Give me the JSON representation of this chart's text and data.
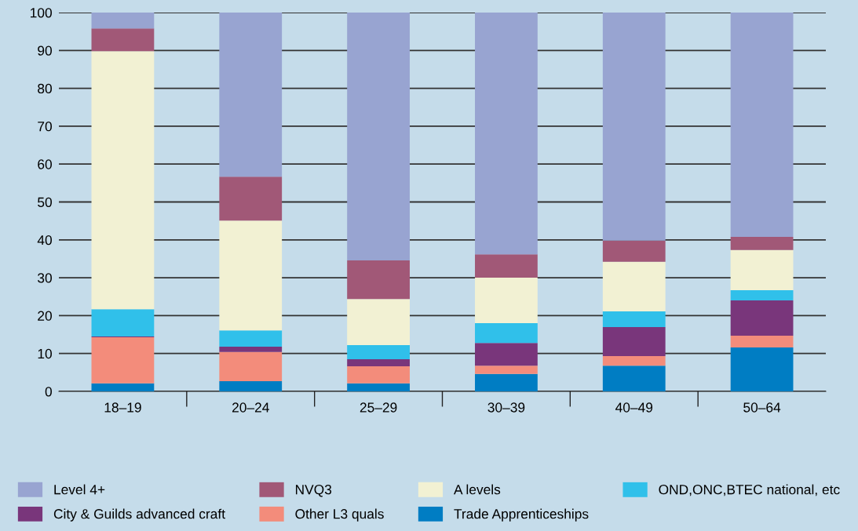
{
  "chart_data": {
    "type": "bar",
    "stacked": true,
    "categories": [
      "18–19",
      "20–24",
      "25–29",
      "30–39",
      "40–49",
      "50–64"
    ],
    "series": [
      {
        "name": "Trade Apprenticeships",
        "color": "#007dc3",
        "values": [
          2.1,
          2.7,
          2.1,
          4.6,
          6.8,
          11.6
        ]
      },
      {
        "name": "Other L3 quals",
        "color": "#f38c7b",
        "values": [
          12.2,
          7.7,
          4.5,
          2.2,
          2.5,
          3.1
        ]
      },
      {
        "name": "City & Guilds advanced craft",
        "color": "#79367b",
        "values": [
          0.2,
          1.4,
          1.9,
          6.0,
          7.7,
          9.3
        ]
      },
      {
        "name": "OND,ONC,BTEC national, etc",
        "color": "#30c0ea",
        "values": [
          7.2,
          4.3,
          3.7,
          5.2,
          4.1,
          2.7
        ]
      },
      {
        "name": "A levels",
        "color": "#f2f1d3",
        "values": [
          68.1,
          29.0,
          12.2,
          12.0,
          13.1,
          10.6
        ]
      },
      {
        "name": "NVQ3",
        "color": "#a15877",
        "values": [
          6.0,
          11.6,
          10.2,
          6.2,
          5.6,
          3.5
        ]
      },
      {
        "name": "Level 4+",
        "color": "#98a4d1",
        "values": [
          4.2,
          43.3,
          65.4,
          63.8,
          60.2,
          59.2
        ]
      }
    ],
    "ylim": [
      0,
      100
    ],
    "yticks": [
      0,
      10,
      20,
      30,
      40,
      50,
      60,
      70,
      80,
      90,
      100
    ],
    "grid": "y",
    "legend": "bottom"
  }
}
